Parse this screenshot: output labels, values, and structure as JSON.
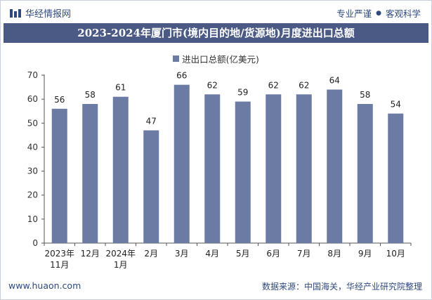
{
  "header": {
    "brand": "华经情报网",
    "slogan_left": "专业严谨",
    "slogan_sep": "●",
    "slogan_right": "客观科学"
  },
  "footer": {
    "website": "www.huaon.com",
    "source": "数据来源：中国海关，华经产业研究院整理"
  },
  "colors": {
    "bar": "#6b7ba3",
    "title_bg": "#4a5a85",
    "brand": "#2f4a7d"
  },
  "chart_data": {
    "type": "bar",
    "title": "2023-2024年厦门市(境内目的地/货源地)月度进出口总额",
    "legend": "进出口总额(亿美元)",
    "categories": [
      "2023年11月",
      "12月",
      "2024年1月",
      "2月",
      "3月",
      "4月",
      "5月",
      "6月",
      "7月",
      "8月",
      "9月",
      "10月"
    ],
    "category_lines": [
      [
        "2023年",
        "11月"
      ],
      [
        "12月"
      ],
      [
        "2024年",
        "1月"
      ],
      [
        "2月"
      ],
      [
        "3月"
      ],
      [
        "4月"
      ],
      [
        "5月"
      ],
      [
        "6月"
      ],
      [
        "7月"
      ],
      [
        "8月"
      ],
      [
        "9月"
      ],
      [
        "10月"
      ]
    ],
    "values": [
      56,
      58,
      61,
      47,
      66,
      62,
      59,
      62,
      62,
      64,
      58,
      54
    ],
    "ylim": [
      0,
      70
    ],
    "yticks": [
      0,
      10,
      20,
      30,
      40,
      50,
      60,
      70
    ],
    "xlabel": "",
    "ylabel": ""
  }
}
